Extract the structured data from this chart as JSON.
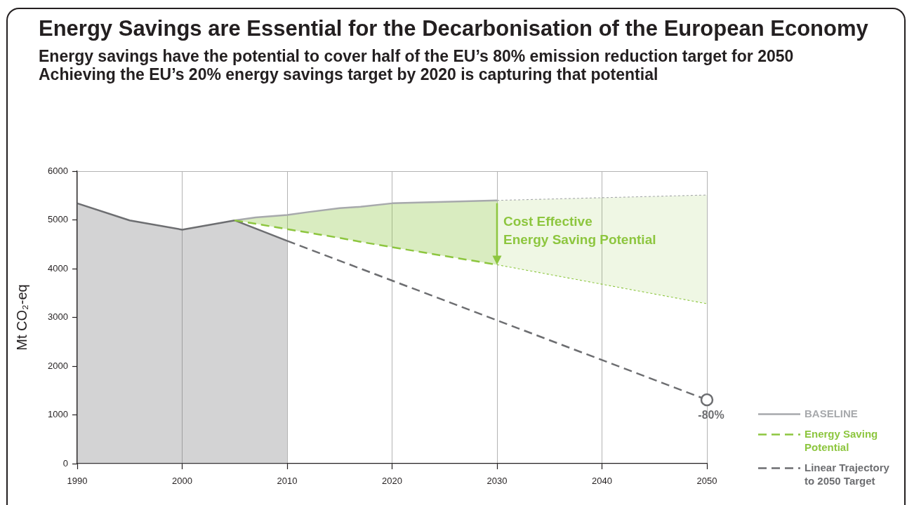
{
  "chart_data": {
    "type": "line",
    "title": "Energy Savings are Essential for the Decarbonisation of the European Economy",
    "subtitle": "Energy savings have the potential to cover half of the EU’s 80% emission reduction target for 2050\nAchieving the EU’s 20% energy savings target by 2020 is capturing that potential",
    "ylabel": "Mt CO₂-eq",
    "xlim": [
      1990,
      2050
    ],
    "xticks": [
      1990,
      2000,
      2010,
      2020,
      2030,
      2040,
      2050
    ],
    "ylim": [
      0,
      6000
    ],
    "yticks": [
      0,
      1000,
      2000,
      3000,
      4000,
      5000,
      6000
    ],
    "grid": "x",
    "legend": "bottom right",
    "marker": "none",
    "line_style": "solid",
    "series": [
      {
        "type": "area",
        "color": "#6d6e71",
        "x": [
          1990,
          1995,
          2000,
          2005,
          2010
        ],
        "values": [
          5340,
          4990,
          4800,
          4990,
          4570
        ]
      },
      {
        "name": "BASELINE",
        "color": "#a7a9ac",
        "x": [
          2005,
          2007,
          2010,
          2012,
          2015,
          2017,
          2020,
          2030
        ],
        "values": [
          4990,
          5050,
          5100,
          5160,
          5240,
          5270,
          5340,
          5400
        ]
      },
      {
        "color": "#a7a9ac",
        "line_style": "dotted",
        "x": [
          2030,
          2050
        ],
        "values": [
          5400,
          5510
        ]
      },
      {
        "name": "Energy Saving Potential",
        "color": "#8dc63f",
        "line_style": "dashed",
        "x": [
          2005,
          2007,
          2010,
          2012,
          2015,
          2017,
          2020,
          2030
        ],
        "values": [
          4990,
          4920,
          4810,
          4740,
          4630,
          4550,
          4440,
          4080
        ],
        "lower": [
          4990,
          4920,
          4810,
          4740,
          4630,
          4550,
          4440,
          4080
        ],
        "upper": [
          4990,
          5050,
          5100,
          5160,
          5240,
          5270,
          5340,
          5400
        ]
      },
      {
        "color": "#8dc63f",
        "line_style": "dotted",
        "x": [
          2030,
          2050
        ],
        "values": [
          4080,
          3280
        ],
        "lower": [
          4080,
          3280
        ],
        "upper": [
          5400,
          5510
        ]
      },
      {
        "name": "Linear Trajectory to 2050 Target",
        "color": "#6d6e71",
        "line_style": "dashed",
        "x": [
          2010,
          2050
        ],
        "values": [
          4570,
          1310
        ]
      },
      {
        "type": "scatter",
        "color": "#6d6e71",
        "marker": "circle",
        "x": [
          2050
        ],
        "values": [
          1310
        ]
      }
    ],
    "annotations": [
      {
        "text": "Cost Effective\nEnergy Saving Potential",
        "x": 2030,
        "y": 4080
      },
      {
        "text": "-80%",
        "x": 2050,
        "y": 1310
      }
    ]
  }
}
